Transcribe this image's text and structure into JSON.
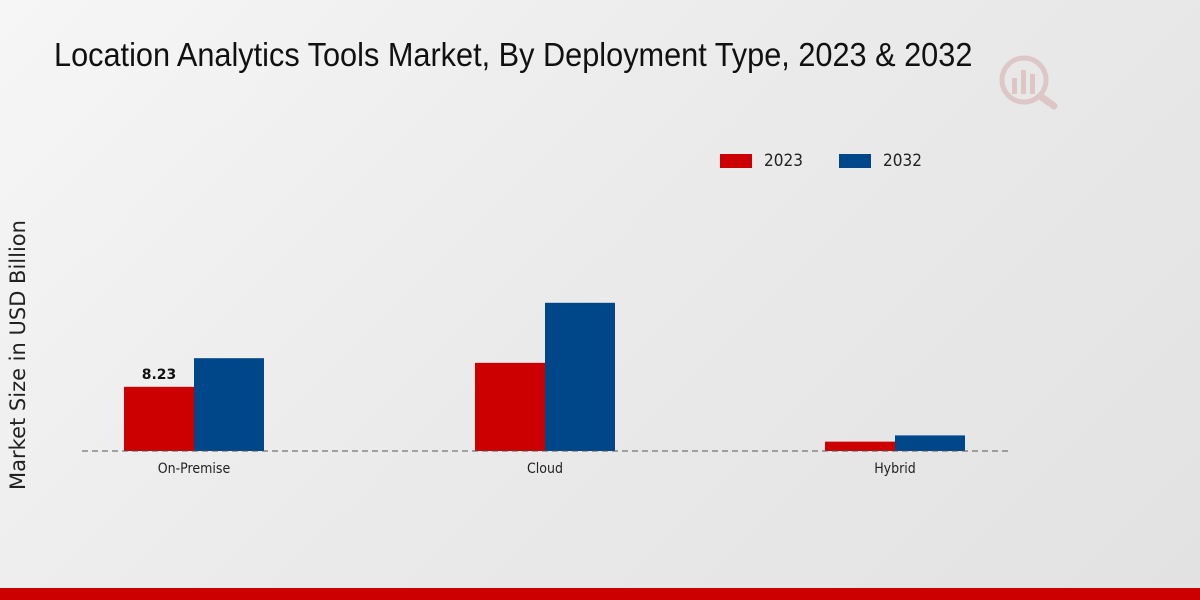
{
  "chart_data": {
    "type": "bar",
    "title": "Location Analytics Tools Market, By Deployment Type, 2023 & 2032",
    "xlabel": "",
    "ylabel": "Market Size in USD Billion",
    "categories": [
      "On-Premise",
      "Cloud",
      "Hybrid"
    ],
    "series": [
      {
        "name": "2023",
        "color": "#cc0000",
        "values": [
          8.23,
          11.3,
          1.2
        ]
      },
      {
        "name": "2032",
        "color": "#00478a",
        "values": [
          11.9,
          19.0,
          2.0
        ]
      }
    ],
    "data_labels": [
      {
        "series": "2023",
        "category": "On-Premise",
        "text": "8.23"
      }
    ],
    "ylim": [
      0,
      45
    ],
    "grid": false,
    "legend_position": "top-right"
  },
  "brand": {
    "accent_color": "#cc0000",
    "logo_icon": "watermark-logo-icon"
  }
}
